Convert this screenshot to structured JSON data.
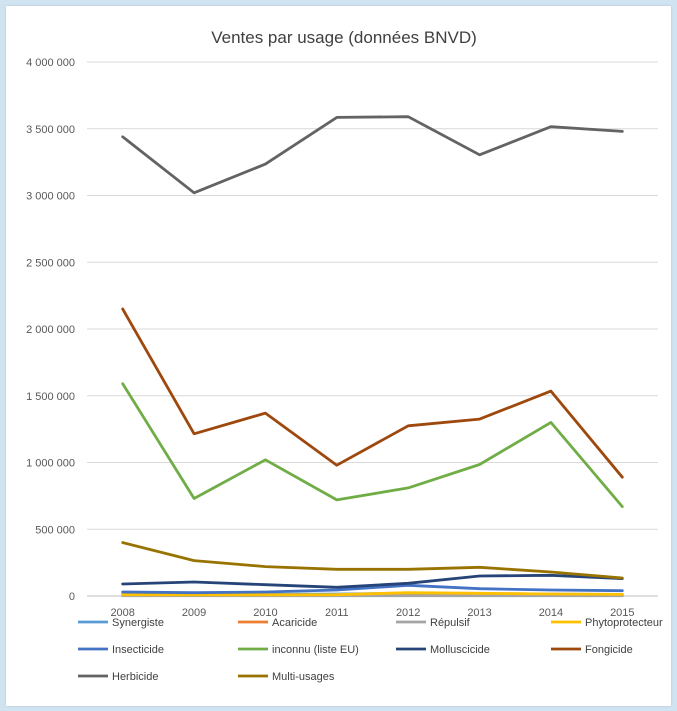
{
  "chart_data": {
    "type": "line",
    "title": "Ventes par usage (données BNVD)",
    "xlabel": "",
    "ylabel": "",
    "x": [
      "2008",
      "2009",
      "2010",
      "2011",
      "2012",
      "2013",
      "2014",
      "2015"
    ],
    "ylim": [
      0,
      4000000
    ],
    "yticks": [
      0,
      500000,
      1000000,
      1500000,
      2000000,
      2500000,
      3000000,
      3500000,
      4000000
    ],
    "ytick_labels": [
      "0",
      "500 000",
      "1 000 000",
      "1 500 000",
      "2 000 000",
      "2 500 000",
      "3 000 000",
      "3 500 000",
      "4 000 000"
    ],
    "grid": "horizontal",
    "legend_position": "bottom",
    "series": [
      {
        "name": "Synergiste",
        "color": "#5b9bd5",
        "values": [
          15000,
          12000,
          12000,
          15000,
          20000,
          18000,
          15000,
          12000
        ]
      },
      {
        "name": "Acaricide",
        "color": "#ed7d31",
        "values": [
          8000,
          6000,
          6000,
          7000,
          8000,
          7000,
          6000,
          5000
        ]
      },
      {
        "name": "Répulsif",
        "color": "#a5a5a5",
        "values": [
          2000,
          2000,
          2000,
          2000,
          2000,
          2000,
          2000,
          2000
        ]
      },
      {
        "name": "Phytoprotecteur",
        "color": "#ffc000",
        "values": [
          10000,
          9000,
          9000,
          10000,
          25000,
          20000,
          15000,
          12000
        ]
      },
      {
        "name": "Insecticide",
        "color": "#4472c4",
        "values": [
          30000,
          25000,
          30000,
          45000,
          80000,
          55000,
          45000,
          40000
        ]
      },
      {
        "name": "inconnu (liste EU)",
        "color": "#70ad47",
        "values": [
          1590000,
          730000,
          1020000,
          720000,
          810000,
          985000,
          1300000,
          670000
        ]
      },
      {
        "name": "Molluscicide",
        "color": "#264478",
        "values": [
          90000,
          105000,
          85000,
          65000,
          95000,
          150000,
          155000,
          130000
        ]
      },
      {
        "name": "Fongicide",
        "color": "#9e480e",
        "values": [
          2150000,
          1215000,
          1370000,
          980000,
          1275000,
          1325000,
          1535000,
          890000
        ]
      },
      {
        "name": "Herbicide",
        "color": "#636363",
        "values": [
          3440000,
          3020000,
          3235000,
          3585000,
          3590000,
          3305000,
          3515000,
          3480000
        ]
      },
      {
        "name": "Multi-usages",
        "color": "#997300",
        "values": [
          400000,
          265000,
          220000,
          200000,
          200000,
          215000,
          180000,
          135000
        ]
      }
    ]
  }
}
